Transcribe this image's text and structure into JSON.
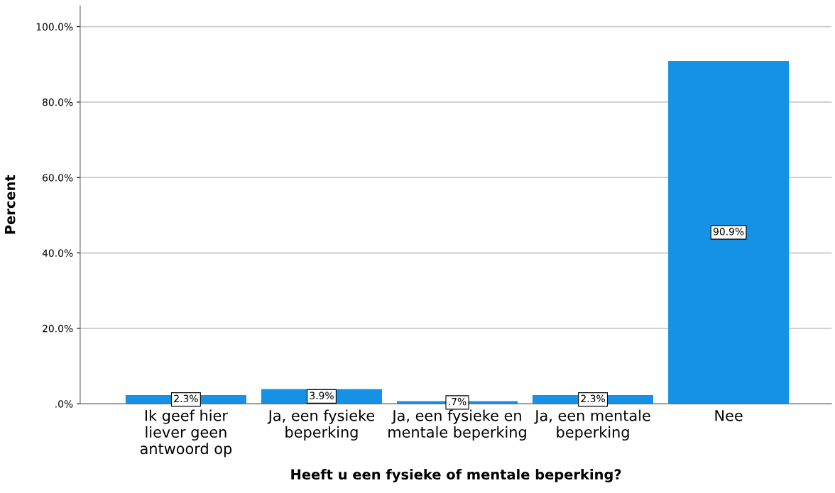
{
  "chart_data": {
    "type": "bar",
    "xlabel": "Heeft u een fysieke of mentale beperking?",
    "ylabel": "Percent",
    "categories": [
      "Ik geef hier liever geen antwoord op",
      "Ja, een fysieke beperking",
      "Ja, een fysieke en mentale beperking",
      "Ja, een mentale beperking",
      "Nee"
    ],
    "values": [
      2.3,
      3.9,
      0.7,
      2.3,
      90.9
    ],
    "value_labels": [
      "2.3%",
      "3.9%",
      ".7%",
      "2.3%",
      "90.9%"
    ],
    "color": "#1591e6",
    "ylim": [
      0,
      105.5
    ],
    "yticks": [
      {
        "value": 0,
        "label": ".0%"
      },
      {
        "value": 20,
        "label": "20.0%"
      },
      {
        "value": 40,
        "label": "40.0%"
      },
      {
        "value": 60,
        "label": "60.0%"
      },
      {
        "value": 80,
        "label": "80.0%"
      },
      {
        "value": 100,
        "label": "100.0%"
      }
    ],
    "grid": "y",
    "legend": false
  }
}
